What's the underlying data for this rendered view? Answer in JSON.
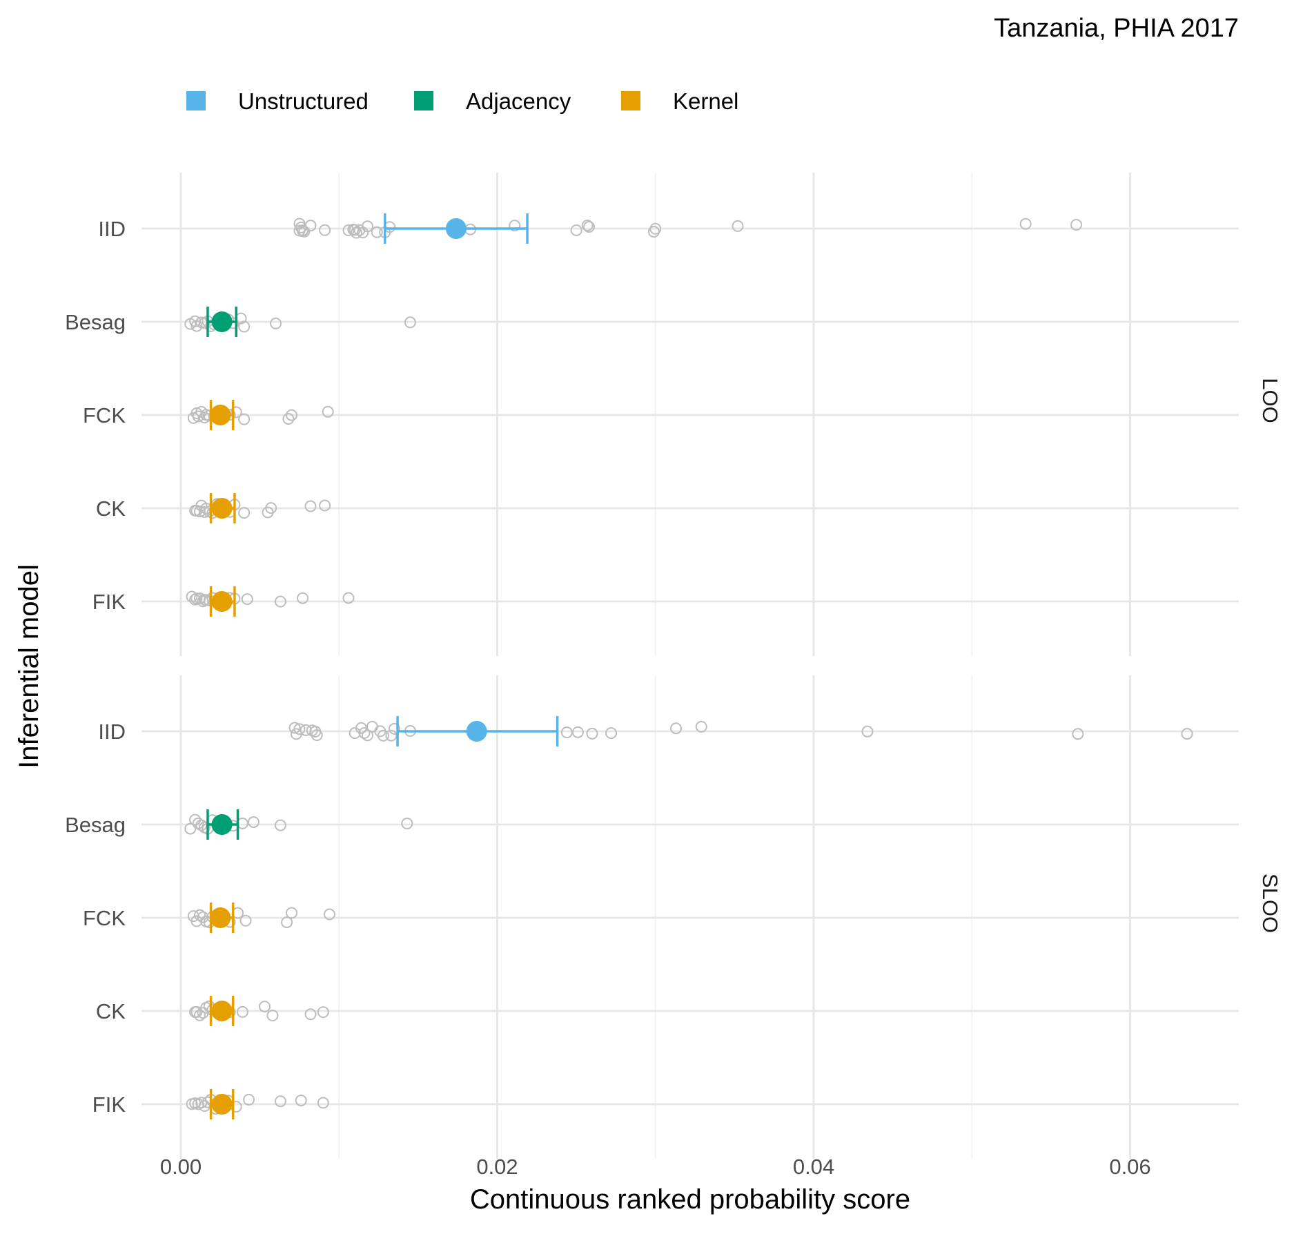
{
  "chart_data": {
    "type": "scatter",
    "title": "Tanzania, PHIA 2017",
    "xlabel": "Continuous ranked probability score",
    "ylabel": "Inferential model",
    "xlim": [
      -0.0025,
      0.0667
    ],
    "x_ticks": [
      0.0,
      0.02,
      0.04,
      0.06
    ],
    "x_tick_labels": [
      "0.00",
      "0.02",
      "0.04",
      "0.06"
    ],
    "models": [
      "IID",
      "Besag",
      "FCK",
      "CK",
      "FIK"
    ],
    "model_group": {
      "IID": "Unstructured",
      "Besag": "Adjacency",
      "FCK": "Kernel",
      "CK": "Kernel",
      "FIK": "Kernel"
    },
    "legend": [
      {
        "label": "Unstructured",
        "color": "#56B4E9"
      },
      {
        "label": "Adjacency",
        "color": "#009E73"
      },
      {
        "label": "Kernel",
        "color": "#E69F00"
      }
    ],
    "legend_position": "top",
    "grid": true,
    "point_color": "#BDBDBD",
    "panels": [
      {
        "label": "LOO",
        "summaries": [
          {
            "model": "IID",
            "mean": 0.0174,
            "lower": 0.0129,
            "upper": 0.0219
          },
          {
            "model": "Besag",
            "mean": 0.0026,
            "lower": 0.0017,
            "upper": 0.0035
          },
          {
            "model": "FCK",
            "mean": 0.0025,
            "lower": 0.0019,
            "upper": 0.0033
          },
          {
            "model": "CK",
            "mean": 0.0026,
            "lower": 0.0019,
            "upper": 0.0034
          },
          {
            "model": "FIK",
            "mean": 0.0026,
            "lower": 0.0019,
            "upper": 0.0034
          }
        ],
        "points": {
          "IID": [
            0.0075,
            0.0076,
            0.0077,
            0.0078,
            0.0075,
            0.0077,
            0.0082,
            0.0091,
            0.0106,
            0.0109,
            0.011,
            0.0111,
            0.0113,
            0.0115,
            0.0118,
            0.0124,
            0.0129,
            0.0132,
            0.0183,
            0.0211,
            0.025,
            0.0257,
            0.0258,
            0.0299,
            0.03,
            0.0352,
            0.0534,
            0.0566
          ],
          "Besag": [
            0.0006,
            0.0009,
            0.001,
            0.0013,
            0.0015,
            0.0017,
            0.0019,
            0.0021,
            0.0024,
            0.0027,
            0.003,
            0.0033,
            0.0038,
            0.004,
            0.006,
            0.0145
          ],
          "FCK": [
            0.0008,
            0.001,
            0.0011,
            0.0013,
            0.0015,
            0.0016,
            0.0018,
            0.0021,
            0.0024,
            0.0027,
            0.0031,
            0.0035,
            0.004,
            0.0068,
            0.007,
            0.0093
          ],
          "CK": [
            0.0009,
            0.001,
            0.0012,
            0.0013,
            0.0015,
            0.0016,
            0.0018,
            0.002,
            0.0023,
            0.0027,
            0.0031,
            0.0034,
            0.004,
            0.0055,
            0.0057,
            0.0082,
            0.0091
          ],
          "FIK": [
            0.0007,
            0.0009,
            0.001,
            0.0012,
            0.0014,
            0.0015,
            0.0016,
            0.0018,
            0.002,
            0.0023,
            0.0027,
            0.0031,
            0.0034,
            0.0042,
            0.0063,
            0.0077,
            0.0106
          ]
        }
      },
      {
        "label": "SLOO",
        "summaries": [
          {
            "model": "IID",
            "mean": 0.0187,
            "lower": 0.0137,
            "upper": 0.0238
          },
          {
            "model": "Besag",
            "mean": 0.0026,
            "lower": 0.0017,
            "upper": 0.0036
          },
          {
            "model": "FCK",
            "mean": 0.0025,
            "lower": 0.0019,
            "upper": 0.0033
          },
          {
            "model": "CK",
            "mean": 0.0026,
            "lower": 0.0019,
            "upper": 0.0033
          },
          {
            "model": "FIK",
            "mean": 0.0026,
            "lower": 0.0019,
            "upper": 0.0033
          }
        ],
        "points": {
          "IID": [
            0.0072,
            0.0073,
            0.0075,
            0.0079,
            0.0083,
            0.0085,
            0.0086,
            0.011,
            0.0114,
            0.0116,
            0.0118,
            0.0121,
            0.0126,
            0.0128,
            0.0133,
            0.0135,
            0.0145,
            0.0244,
            0.0251,
            0.026,
            0.0272,
            0.0313,
            0.0329,
            0.0434,
            0.0567,
            0.0636
          ],
          "Besag": [
            0.0006,
            0.0009,
            0.0011,
            0.0013,
            0.0015,
            0.0017,
            0.002,
            0.0023,
            0.0026,
            0.0029,
            0.0033,
            0.0039,
            0.0046,
            0.0063,
            0.0143
          ],
          "FCK": [
            0.0008,
            0.001,
            0.0012,
            0.0014,
            0.0016,
            0.0018,
            0.002,
            0.0023,
            0.0027,
            0.0031,
            0.0036,
            0.0041,
            0.0067,
            0.007,
            0.0094
          ],
          "CK": [
            0.0009,
            0.001,
            0.0012,
            0.0014,
            0.0016,
            0.0018,
            0.002,
            0.0023,
            0.0027,
            0.0031,
            0.0039,
            0.0053,
            0.0058,
            0.0082,
            0.009
          ],
          "FIK": [
            0.0007,
            0.0009,
            0.0011,
            0.0013,
            0.0015,
            0.0017,
            0.0019,
            0.0022,
            0.0026,
            0.003,
            0.0035,
            0.0043,
            0.0063,
            0.0076,
            0.009
          ]
        }
      }
    ]
  }
}
